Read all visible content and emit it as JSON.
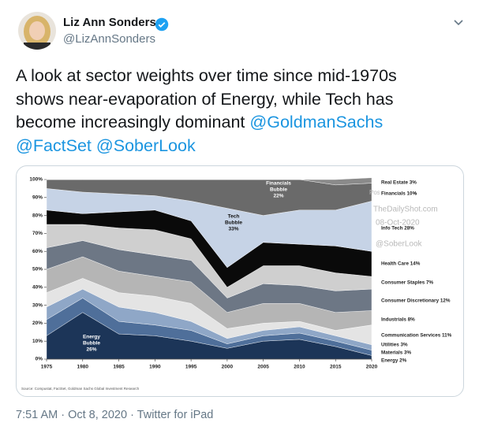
{
  "tweet": {
    "name": "Liz Ann Sonders",
    "handle": "@LizAnnSonders",
    "text_lines": [
      "A look at sector weights over time since mid-1970s",
      "shows near-evaporation of Energy, while Tech has",
      "become increasingly dominant"
    ],
    "mentions": [
      "@GoldmanSachs",
      "@FactSet",
      "@SoberLook"
    ],
    "footer": "7:51 AM · Oct 8, 2020 · Twitter for iPad"
  },
  "chart_data": {
    "type": "stacked_area",
    "x": [
      1975,
      1980,
      1985,
      1990,
      1995,
      2000,
      2005,
      2010,
      2015,
      2020
    ],
    "xlim": [
      1975,
      2020
    ],
    "xticks": [
      1975,
      1980,
      1985,
      1990,
      1995,
      2000,
      2005,
      2010,
      2015,
      2020
    ],
    "ylim": [
      0,
      100
    ],
    "yticks": [
      {
        "value": 0,
        "label": "0%"
      },
      {
        "value": 10,
        "label": "10%"
      },
      {
        "value": 20,
        "label": "20%"
      },
      {
        "value": 30,
        "label": "30%"
      },
      {
        "value": 40,
        "label": "40%"
      },
      {
        "value": 50,
        "label": "50%"
      },
      {
        "value": 60,
        "label": "60%"
      },
      {
        "value": 70,
        "label": "70%"
      },
      {
        "value": 80,
        "label": "80%"
      },
      {
        "value": 90,
        "label": "90%"
      },
      {
        "value": 100,
        "label": "100%"
      }
    ],
    "series": [
      {
        "name": "Energy 2%",
        "color": "#1c3558",
        "values": [
          13,
          26,
          14,
          13,
          10,
          6,
          10,
          11,
          7,
          2
        ]
      },
      {
        "name": "Materials 3%",
        "color": "#4f6f9a",
        "values": [
          9,
          8,
          7,
          6,
          6,
          2.5,
          3,
          3.5,
          3,
          3
        ]
      },
      {
        "name": "Utilities 3%",
        "color": "#8fa7c7",
        "values": [
          7,
          5,
          8,
          7,
          5,
          3,
          3,
          3.5,
          3,
          3
        ]
      },
      {
        "name": "Communication Services 11%",
        "color": "#e4e4e4",
        "values": [
          8,
          6,
          8,
          9,
          10,
          5.5,
          4,
          3,
          3,
          11
        ]
      },
      {
        "name": "Industrials 8%",
        "color": "#b5b5b5",
        "values": [
          13,
          12,
          12,
          11,
          12,
          9,
          11,
          10,
          10,
          8
        ]
      },
      {
        "name": "Consumer Discretionary 12%",
        "color": "#6d7785",
        "values": [
          12,
          9,
          12,
          12,
          12,
          8,
          11,
          10,
          12,
          12
        ]
      },
      {
        "name": "Consumer Staples 7%",
        "color": "#cfcfcf",
        "values": [
          13,
          9,
          12,
          14,
          12,
          6,
          10,
          11,
          10,
          7
        ]
      },
      {
        "name": "Health Care 14%",
        "color": "#0a0a0a",
        "values": [
          8,
          6,
          9,
          11,
          10,
          11,
          13,
          12,
          15,
          14
        ]
      },
      {
        "name": "Info Tech 28%",
        "color": "#c6d3e6",
        "values": [
          12,
          12,
          10,
          8,
          11,
          33,
          15,
          19,
          20,
          28
        ]
      },
      {
        "name": "Financials 10%",
        "color": "#6a6a6a",
        "values": [
          5,
          7,
          8,
          9,
          12,
          16,
          20,
          17,
          14,
          10
        ]
      },
      {
        "name": "Real Estate 3%",
        "color": "#8a8a8a",
        "values": [
          0,
          0,
          0,
          0,
          0,
          0,
          0,
          0,
          3,
          3
        ]
      }
    ],
    "annotations": [
      {
        "lines": [
          "Energy",
          "Bubble",
          "26%"
        ]
      },
      {
        "lines": [
          "Tech",
          "Bubble",
          "33%"
        ]
      },
      {
        "lines": [
          "Financials",
          "Bubble",
          "22%"
        ]
      }
    ],
    "watermark": [
      "Posted on",
      "TheDailyShot.com",
      "08-Oct-2020",
      "@SoberLook"
    ],
    "source": "Source: Compustat, FactSet, Goldman Sachs Global Investment Research"
  }
}
